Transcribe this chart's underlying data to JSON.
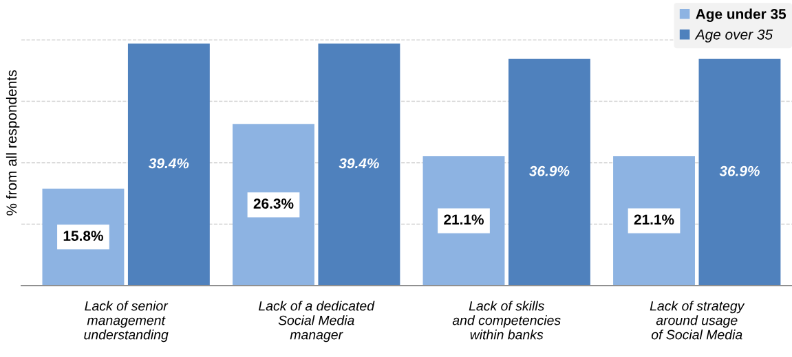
{
  "chart_data": {
    "type": "bar",
    "ylabel": "% from all respondents",
    "categories": [
      "Lack of senior\nmanagement\nunderstanding",
      "Lack of a dedicated\nSocial Media\nmanager",
      "Lack of skills\nand competencies\nwithin banks",
      "Lack of strategy\naround usage\nof Social Media"
    ],
    "series": [
      {
        "name": "Age under 35",
        "color": "#8db3e2",
        "values": [
          15.8,
          26.3,
          21.1,
          21.1
        ],
        "value_labels": [
          "15.8%",
          "26.3%",
          "21.1%",
          "21.1%"
        ]
      },
      {
        "name": "Age over 35",
        "color": "#4f81bd",
        "values": [
          39.4,
          39.4,
          36.9,
          36.9
        ],
        "value_labels": [
          "39.4%",
          "39.4%",
          "36.9%",
          "36.9%"
        ]
      }
    ],
    "yticks": [
      {
        "value": 0,
        "label": null
      },
      {
        "value": 10,
        "label": null
      },
      {
        "value": 20,
        "label": null
      },
      {
        "value": 30,
        "label": null
      },
      {
        "value": 40,
        "label": null
      }
    ],
    "grid": "y",
    "legend": "top right",
    "tick_labels": "x"
  }
}
